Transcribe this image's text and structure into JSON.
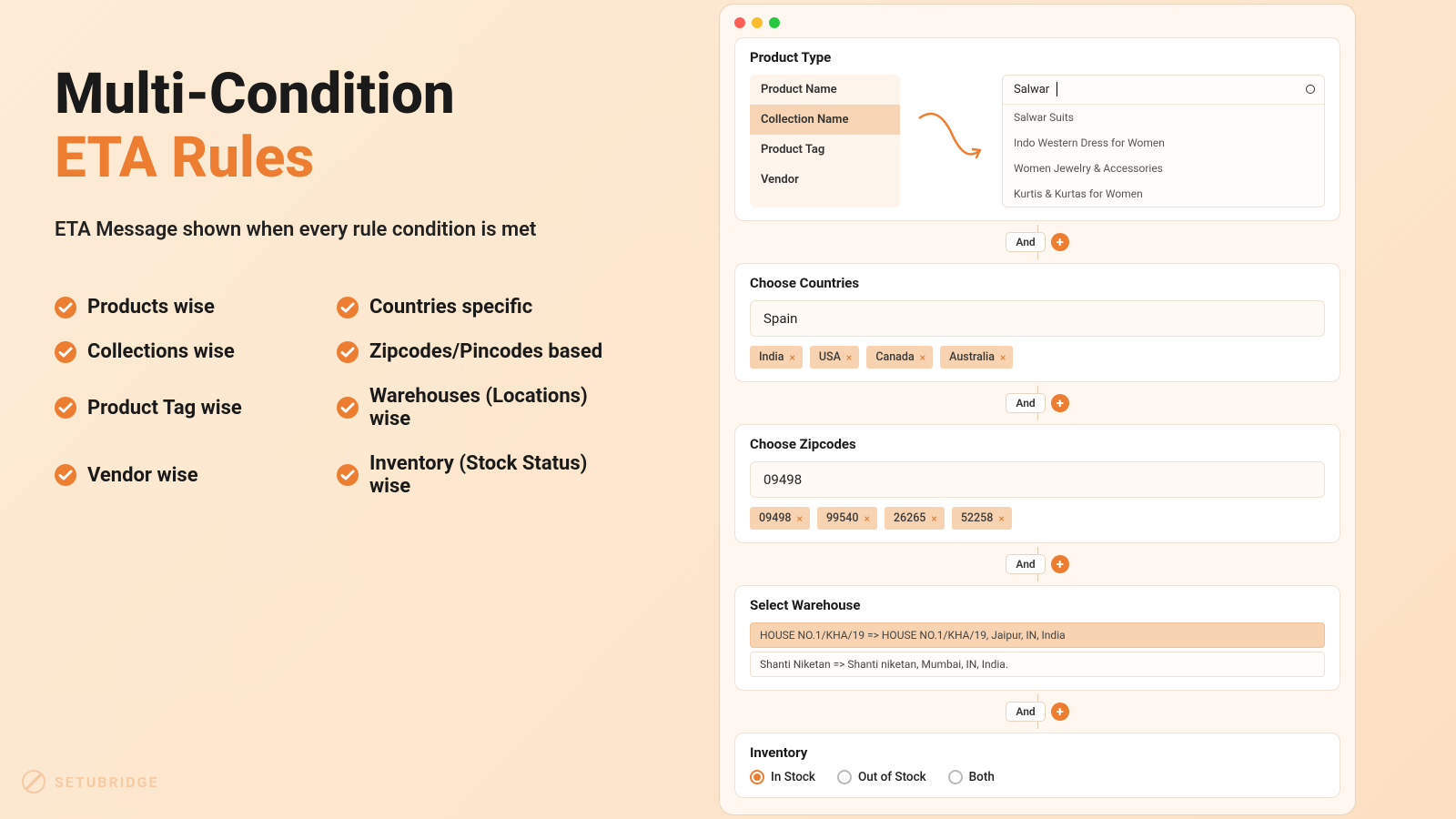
{
  "colors": {
    "accent": "#ec7d31",
    "text": "#1a1a1a",
    "bg_start": "#fdecd7",
    "bg_end": "#fce0c3",
    "chip_bg": "#f8d3b1",
    "window_bg": "#fff7f0"
  },
  "left": {
    "title_line1": "Multi-Condition",
    "title_line2": "ETA Rules",
    "subtitle": "ETA Message shown when every rule condition is met",
    "bullets_col1": [
      "Products wise",
      "Collections wise",
      "Product Tag wise",
      "Vendor wise"
    ],
    "bullets_col2": [
      "Countries specific",
      "Zipcodes/Pincodes based",
      "Warehouses (Locations) wise",
      "Inventory (Stock Status) wise"
    ]
  },
  "brand": "SETUBRIDGE",
  "window": {
    "product_type": {
      "title": "Product Type",
      "tabs": [
        "Product Name",
        "Collection Name",
        "Product Tag",
        "Vendor"
      ],
      "active_tab_index": 1,
      "search_value": "Salwar",
      "options": [
        "Salwar Suits",
        "Indo Western Dress for Women",
        "Women Jewelry & Accessories",
        "Kurtis & Kurtas for Women"
      ]
    },
    "connector_label": "And",
    "countries": {
      "title": "Choose Countries",
      "input_value": "Spain",
      "chips": [
        "India",
        "USA",
        "Canada",
        "Australia"
      ]
    },
    "zipcodes": {
      "title": "Choose Zipcodes",
      "input_value": "09498",
      "chips": [
        "09498",
        "99540",
        "26265",
        "52258"
      ]
    },
    "warehouse": {
      "title": "Select Warehouse",
      "items": [
        "HOUSE NO.1/KHA/19 => HOUSE NO.1/KHA/19, Jaipur, IN, India",
        "Shanti Niketan => Shanti niketan, Mumbai, IN, India."
      ],
      "selected_index": 0
    },
    "inventory": {
      "title": "Inventory",
      "options": [
        "In Stock",
        "Out of Stock",
        "Both"
      ],
      "selected_index": 0
    }
  }
}
